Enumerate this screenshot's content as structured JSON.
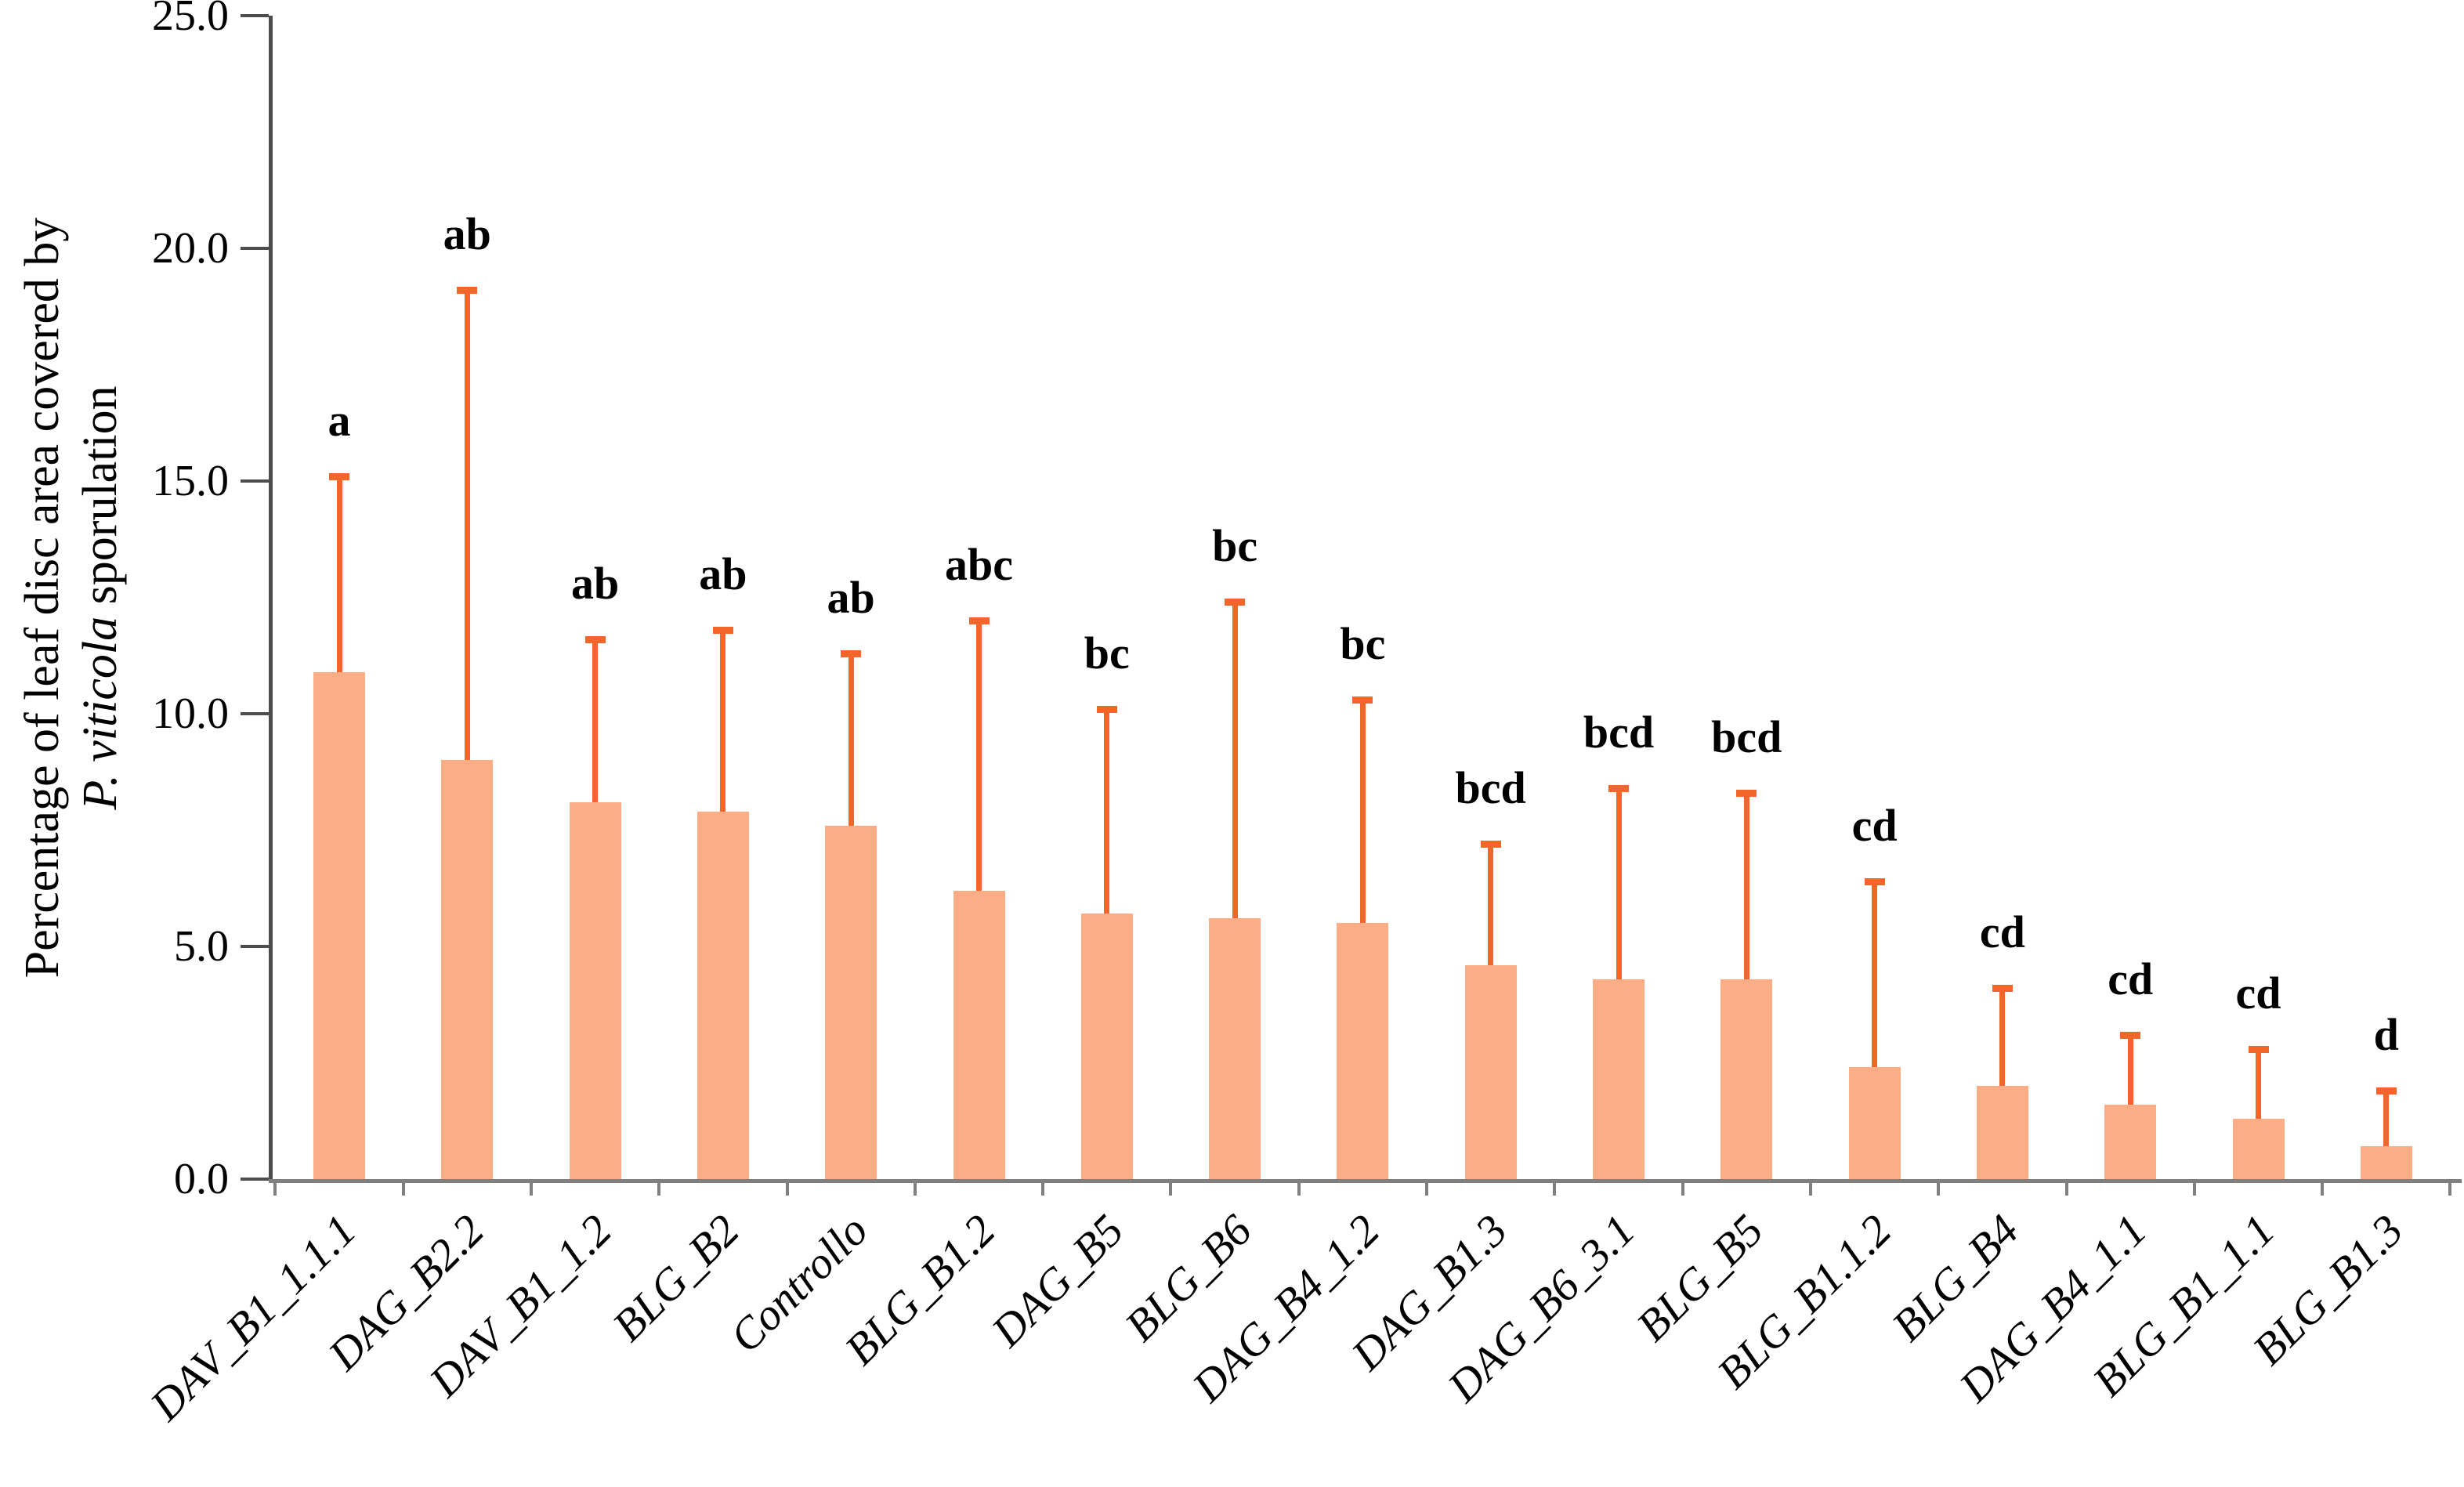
{
  "chart_data": {
    "type": "bar",
    "title": "",
    "ylabel_line1": "Percentage of leaf disc area covered by",
    "ylabel_line2_italic": "P. viticola",
    "ylabel_line2_rest": " sporulation",
    "xlabel": "",
    "ylim": [
      0,
      25
    ],
    "ytick_labels": [
      "0.0",
      "5.0",
      "10.0",
      "15.0",
      "20.0",
      "25.0"
    ],
    "grid": false,
    "legend": false,
    "categories": [
      "DAV_B1_1.1.1",
      "DAG_B2.2",
      "DAV_B1_1.2",
      "BLG_B2",
      "Controllo",
      "BLG_B1.2",
      "DAG_B5",
      "BLG_B6",
      "DAG_B4_1.2",
      "DAG_B1.3",
      "DAG_B6_3.1",
      "BLG_B5",
      "BLG_B1.1.2",
      "BLG_B4",
      "DAG_B4_1.1",
      "BLG_B1_1.1",
      "BLG_B1.3"
    ],
    "values": [
      10.9,
      9.0,
      8.1,
      7.9,
      7.6,
      6.2,
      5.7,
      5.6,
      5.5,
      4.6,
      4.3,
      4.3,
      2.4,
      2.0,
      1.6,
      1.3,
      0.7
    ],
    "error_bar_tops": [
      15.1,
      19.1,
      11.6,
      11.8,
      11.3,
      12.0,
      10.1,
      12.4,
      10.3,
      7.2,
      8.4,
      8.3,
      6.4,
      4.1,
      3.1,
      2.8,
      1.9
    ],
    "significance_letters": [
      "a",
      "ab",
      "ab",
      "ab",
      "ab",
      "abc",
      "bc",
      "bc",
      "bc",
      "bcd",
      "bcd",
      "bcd",
      "cd",
      "cd",
      "cd",
      "cd",
      "d"
    ],
    "bar_color": "#FBAE85",
    "error_color": "#F2662B",
    "y_axis_color": "#4d4d4d",
    "x_axis_color": "#7f7f7f"
  }
}
